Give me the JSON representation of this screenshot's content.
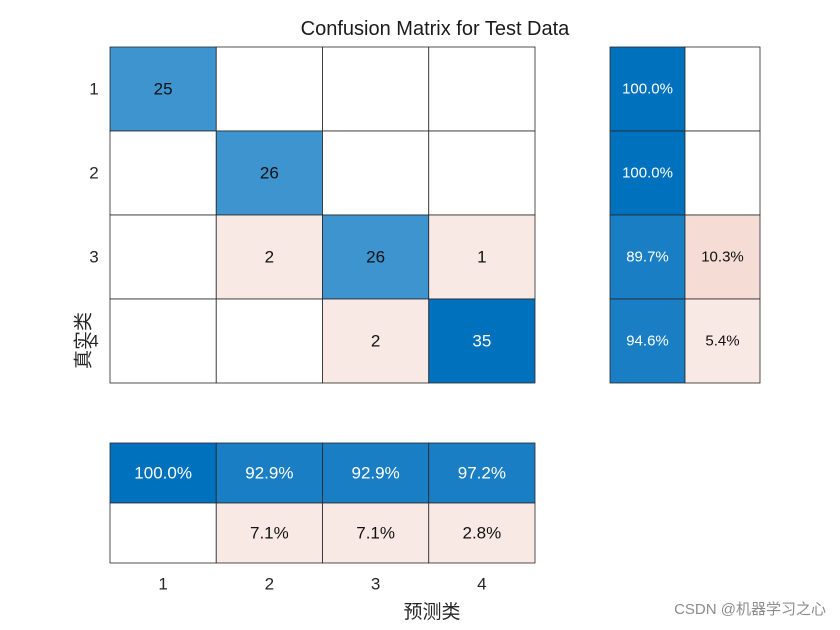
{
  "chart_data": {
    "type": "heatmap",
    "title": "Confusion Matrix for Test Data",
    "ylabel": "真实类",
    "xlabel": "预测类",
    "classes": [
      "1",
      "2",
      "3",
      "4"
    ],
    "matrix": [
      [
        25,
        null,
        null,
        null
      ],
      [
        null,
        26,
        null,
        null
      ],
      [
        null,
        2,
        26,
        1
      ],
      [
        null,
        null,
        2,
        35
      ]
    ],
    "row_summary": [
      [
        "100.0%",
        ""
      ],
      [
        "100.0%",
        ""
      ],
      [
        "89.7%",
        "10.3%"
      ],
      [
        "94.6%",
        "5.4%"
      ]
    ],
    "column_summary": [
      [
        "100.0%",
        "92.9%",
        "92.9%",
        "97.2%"
      ],
      [
        "",
        "7.1%",
        "7.1%",
        "2.8%"
      ]
    ]
  },
  "colors": {
    "diag_strong": "#0072bd",
    "diag_medium": "#3d94cf",
    "blue_alt": "#197ec3",
    "error_light": "#f8e9e4",
    "error_medium": "#f5ddd5",
    "empty": "#ffffff",
    "grid": "#262626"
  },
  "watermark": "CSDN @机器学习之心"
}
